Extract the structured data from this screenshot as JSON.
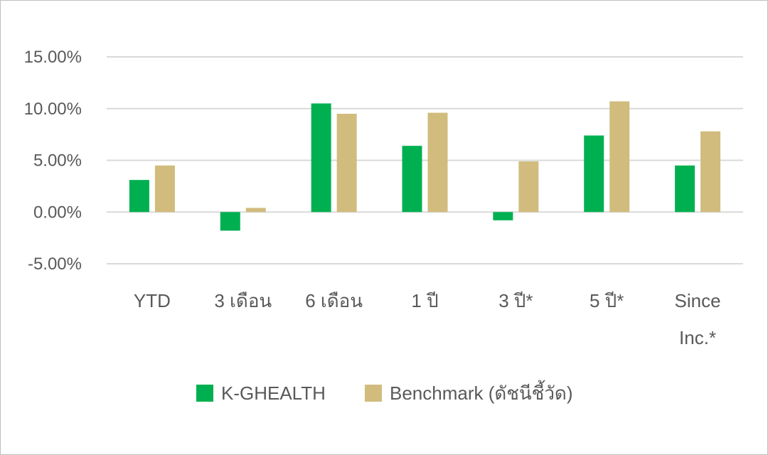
{
  "chart_data": {
    "type": "bar",
    "categories": [
      "YTD",
      "3 เดือน",
      "6 เดือน",
      "1 ปี",
      "3 ปี*",
      "5 ปี*",
      "Since Inc.*"
    ],
    "category_lines": [
      [
        "YTD"
      ],
      [
        "3 เดือน"
      ],
      [
        "6 เดือน"
      ],
      [
        "1 ปี"
      ],
      [
        "3 ปี*"
      ],
      [
        "5 ปี*"
      ],
      [
        "Since",
        "Inc.*"
      ]
    ],
    "series": [
      {
        "name": "K-GHEALTH",
        "color": "#00b050",
        "values": [
          3.1,
          -1.8,
          10.5,
          6.4,
          -0.8,
          7.4,
          4.5
        ]
      },
      {
        "name": "Benchmark (ดัชนีชี้วัด)",
        "color": "#d1bc7e",
        "values": [
          4.5,
          0.4,
          9.5,
          9.6,
          4.9,
          10.7,
          7.8
        ]
      }
    ],
    "ylim": [
      -5,
      15
    ],
    "yticks": [
      15,
      10,
      5,
      0,
      -5
    ],
    "ytick_labels": [
      "15.00%",
      "10.00%",
      "5.00%",
      "0.00%",
      "-5.00%"
    ],
    "grid": true,
    "legend": "bottom",
    "title": "",
    "xlabel": "",
    "ylabel": ""
  }
}
